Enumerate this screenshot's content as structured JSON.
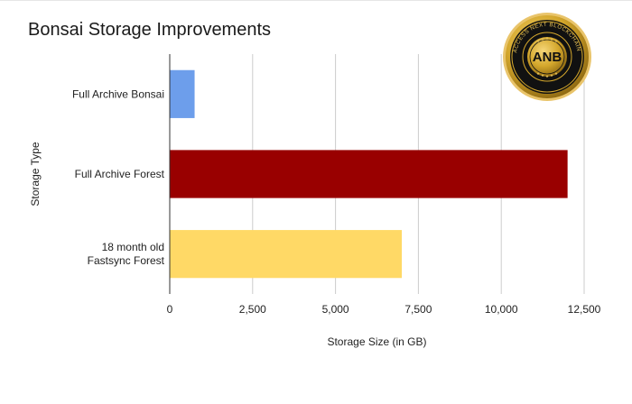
{
  "chart_data": {
    "type": "bar",
    "orientation": "horizontal",
    "title": "Bonsai Storage Improvements",
    "xlabel": "Storage Size (in GB)",
    "ylabel": "Storage Type",
    "categories": [
      [
        "Full Archive Bonsai"
      ],
      [
        "Full Archive Forest"
      ],
      [
        "18 month old",
        "Fastsync Forest"
      ]
    ],
    "values": [
      750,
      12000,
      7000
    ],
    "bar_colors": [
      "#6d9eeb",
      "#990000",
      "#ffd966"
    ],
    "xlim": [
      0,
      12500
    ],
    "x_ticks": [
      0,
      2500,
      5000,
      7500,
      10000,
      12500
    ],
    "x_tick_labels": [
      "0",
      "2,500",
      "5,000",
      "7,500",
      "10,000",
      "12,500"
    ],
    "grid": "vertical",
    "grid_color": "#cccccc",
    "legend": "none"
  },
  "logo": {
    "text": "ANB",
    "ring_text": "ACCESS NEXT BLOCKCHAIN",
    "colors": {
      "gold": "#d4a72c",
      "dark": "#111111"
    }
  }
}
